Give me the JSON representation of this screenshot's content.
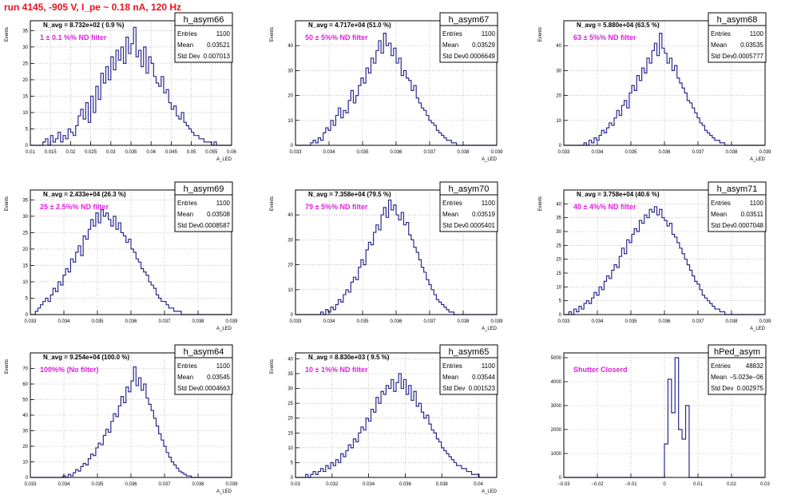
{
  "page": {
    "run_title": "run 4145,  -905 V, I_pe ~ 0.18 nA, 120 Hz"
  },
  "colors": {
    "histogram_line": "#2b2b8f",
    "title_red": "#e8141e",
    "annotation_magenta": "#e020e0",
    "grid": "#9a9a9a",
    "frame": "#000000"
  },
  "chart_data": [
    {
      "type": "histogram",
      "name": "h_asym66",
      "stats": {
        "Entries": "1100",
        "Mean": "0.03521",
        "Std Dev": "0.007013"
      },
      "navg": "N_avg = 8.732e+02 ( 0.9 %)",
      "note": "1 ± 0.1 %% ND filter",
      "ylabel": "Events",
      "xlabel": "A_LED",
      "xlim": [
        0.01,
        0.06
      ],
      "ylim": [
        0,
        38
      ],
      "xticks": [
        "0.01",
        "0.015",
        "0.02",
        "0.025",
        "0.03",
        "0.035",
        "0.04",
        "0.045",
        "0.05",
        "0.055",
        "0.06"
      ],
      "xtick_values": [
        0.01,
        0.015,
        0.02,
        0.025,
        0.03,
        0.035,
        0.04,
        0.045,
        0.05,
        0.055,
        0.06
      ],
      "yticks": [
        0,
        5,
        10,
        15,
        20,
        25,
        30,
        35
      ],
      "grid": true,
      "values": [
        0,
        0,
        0,
        0,
        0,
        1,
        2,
        0,
        3,
        1,
        2,
        4,
        1,
        3,
        2,
        5,
        4,
        3,
        6,
        9,
        11,
        8,
        13,
        7,
        15,
        10,
        18,
        14,
        22,
        19,
        24,
        20,
        27,
        23,
        29,
        26,
        30,
        25,
        33,
        28,
        31,
        36,
        27,
        29,
        24,
        30,
        22,
        27,
        25,
        21,
        19,
        18,
        21,
        16,
        17,
        13,
        11,
        12,
        9,
        8,
        10,
        7,
        6,
        5,
        4,
        3,
        3,
        2,
        2,
        1,
        1,
        1,
        0,
        1,
        0,
        0,
        0,
        0,
        0,
        0
      ]
    },
    {
      "type": "histogram",
      "name": "h_asym67",
      "stats": {
        "Entries": "1100",
        "Mean": "0.03529",
        "Std Dev": "0.0006649"
      },
      "navg": "N_avg = 4.717e+04 (51.0 %)",
      "note": "50 ± 5%% ND filter",
      "ylabel": "Events",
      "xlabel": "A_LED",
      "xlim": [
        0.033,
        0.039
      ],
      "ylim": [
        0,
        50
      ],
      "xticks": [
        "0.033",
        "0.034",
        "0.035",
        "0.036",
        "0.037",
        "0.038",
        "0.039"
      ],
      "xtick_values": [
        0.033,
        0.034,
        0.035,
        0.036,
        0.037,
        0.038,
        0.039
      ],
      "yticks": [
        0,
        10,
        20,
        30,
        40
      ],
      "grid": true,
      "values": [
        0,
        0,
        0,
        0,
        0,
        0,
        1,
        2,
        1,
        3,
        2,
        5,
        7,
        6,
        10,
        8,
        12,
        15,
        11,
        14,
        13,
        18,
        22,
        17,
        20,
        24,
        27,
        25,
        31,
        29,
        35,
        33,
        38,
        42,
        37,
        45,
        40,
        41,
        36,
        39,
        33,
        35,
        28,
        30,
        27,
        26,
        22,
        24,
        19,
        17,
        15,
        14,
        12,
        10,
        9,
        8,
        6,
        5,
        4,
        3,
        2,
        2,
        1,
        1,
        0,
        0,
        0,
        0,
        0,
        0,
        0,
        0,
        0,
        0,
        0,
        0,
        0,
        0,
        0,
        0
      ]
    },
    {
      "type": "histogram",
      "name": "h_asym68",
      "stats": {
        "Entries": "1100",
        "Mean": "0.03535",
        "Std Dev": "0.0005777"
      },
      "navg": "N_avg = 5.880e+04 (63.5 %)",
      "note": "63 ± 5%% ND filter",
      "ylabel": "Events",
      "xlabel": "A_LED",
      "xlim": [
        0.033,
        0.039
      ],
      "ylim": [
        0,
        50
      ],
      "xticks": [
        "0.033",
        "0.034",
        "0.035",
        "0.036",
        "0.037",
        "0.038",
        "0.039"
      ],
      "xtick_values": [
        0.033,
        0.034,
        0.035,
        0.036,
        0.037,
        0.038,
        0.039
      ],
      "yticks": [
        0,
        10,
        20,
        30,
        40
      ],
      "grid": true,
      "values": [
        0,
        0,
        0,
        0,
        0,
        0,
        0,
        0,
        1,
        0,
        2,
        1,
        3,
        2,
        4,
        6,
        5,
        7,
        9,
        8,
        11,
        14,
        12,
        16,
        18,
        15,
        21,
        24,
        22,
        28,
        26,
        31,
        29,
        35,
        33,
        38,
        41,
        36,
        45,
        39,
        37,
        33,
        35,
        30,
        32,
        27,
        25,
        23,
        21,
        18,
        17,
        15,
        13,
        11,
        9,
        8,
        6,
        5,
        4,
        3,
        2,
        2,
        1,
        1,
        0,
        0,
        0,
        0,
        0,
        0,
        0,
        0,
        0,
        0,
        0,
        0,
        0,
        0,
        0,
        0
      ]
    },
    {
      "type": "histogram",
      "name": "h_asym69",
      "stats": {
        "Entries": "1100",
        "Mean": "0.03508",
        "Std Dev": "0.0008587"
      },
      "navg": "N_avg = 2.433e+04 (26.3 %)",
      "note": "25 ± 2.5%% ND filter",
      "ylabel": "Events",
      "xlabel": "A_LED",
      "xlim": [
        0.033,
        0.039
      ],
      "ylim": [
        0,
        38
      ],
      "xticks": [
        "0.033",
        "0.034",
        "0.035",
        "0.036",
        "0.037",
        "0.038",
        "0.039"
      ],
      "xtick_values": [
        0.033,
        0.034,
        0.035,
        0.036,
        0.037,
        0.038,
        0.039
      ],
      "yticks": [
        0,
        5,
        10,
        15,
        20,
        25,
        30,
        35
      ],
      "grid": true,
      "values": [
        0,
        0,
        1,
        2,
        3,
        4,
        5,
        4,
        6,
        8,
        7,
        10,
        9,
        12,
        14,
        13,
        17,
        16,
        19,
        21,
        18,
        24,
        23,
        26,
        29,
        27,
        31,
        28,
        32,
        30,
        31,
        29,
        27,
        30,
        26,
        28,
        25,
        24,
        22,
        23,
        20,
        19,
        17,
        16,
        14,
        13,
        12,
        10,
        9,
        8,
        6,
        5,
        4,
        4,
        3,
        2,
        2,
        1,
        1,
        1,
        0,
        0,
        0,
        0,
        0,
        0,
        0,
        0,
        0,
        0,
        0,
        0,
        0,
        0,
        0,
        0,
        0,
        0,
        0,
        0
      ]
    },
    {
      "type": "histogram",
      "name": "h_asym70",
      "stats": {
        "Entries": "1100",
        "Mean": "0.03519",
        "Std Dev": "0.0005401"
      },
      "navg": "N_avg = 7.358e+04 (79.5 %)",
      "note": "79 ± 5%% ND filter",
      "ylabel": "Events",
      "xlabel": "A_LED",
      "xlim": [
        0.033,
        0.039
      ],
      "ylim": [
        0,
        50
      ],
      "xticks": [
        "0.033",
        "0.034",
        "0.035",
        "0.036",
        "0.037",
        "0.038",
        "0.039"
      ],
      "xtick_values": [
        0.033,
        0.034,
        0.035,
        0.036,
        0.037,
        0.038,
        0.039
      ],
      "yticks": [
        0,
        10,
        20,
        30,
        40
      ],
      "grid": true,
      "values": [
        0,
        0,
        0,
        0,
        0,
        0,
        0,
        0,
        0,
        0,
        1,
        0,
        2,
        1,
        3,
        2,
        4,
        6,
        5,
        8,
        10,
        9,
        13,
        15,
        14,
        19,
        22,
        20,
        26,
        29,
        28,
        33,
        36,
        34,
        40,
        43,
        39,
        46,
        42,
        44,
        40,
        38,
        41,
        36,
        37,
        32,
        30,
        27,
        25,
        22,
        19,
        17,
        14,
        12,
        10,
        8,
        6,
        5,
        4,
        3,
        2,
        1,
        1,
        0,
        0,
        0,
        0,
        0,
        0,
        0,
        0,
        0,
        0,
        0,
        0,
        0,
        0,
        0,
        0,
        0
      ]
    },
    {
      "type": "histogram",
      "name": "h_asym71",
      "stats": {
        "Entries": "1100",
        "Mean": "0.03511",
        "Std Dev": "0.0007048"
      },
      "navg": "N_avg = 3.758e+04 (40.6 %)",
      "note": "40 ± 4%% ND filter",
      "ylabel": "Events",
      "xlabel": "A_LED",
      "xlim": [
        0.033,
        0.039
      ],
      "ylim": [
        0,
        45
      ],
      "xticks": [
        "0.033",
        "0.034",
        "0.035",
        "0.036",
        "0.037",
        "0.038",
        "0.039"
      ],
      "xtick_values": [
        0.033,
        0.034,
        0.035,
        0.036,
        0.037,
        0.038,
        0.039
      ],
      "yticks": [
        0,
        5,
        10,
        15,
        20,
        25,
        30,
        35,
        40
      ],
      "grid": true,
      "values": [
        0,
        0,
        1,
        0,
        2,
        1,
        3,
        2,
        4,
        5,
        4,
        6,
        8,
        7,
        10,
        9,
        12,
        14,
        13,
        16,
        18,
        17,
        21,
        24,
        22,
        27,
        26,
        29,
        31,
        30,
        34,
        33,
        36,
        35,
        38,
        37,
        39,
        36,
        38,
        35,
        34,
        32,
        33,
        29,
        28,
        26,
        24,
        22,
        20,
        18,
        16,
        14,
        12,
        11,
        9,
        7,
        6,
        5,
        4,
        3,
        2,
        2,
        1,
        1,
        0,
        0,
        0,
        0,
        0,
        0,
        0,
        0,
        0,
        0,
        0,
        0,
        0,
        0,
        0,
        0
      ]
    },
    {
      "type": "histogram",
      "name": "h_asym64",
      "stats": {
        "Entries": "1100",
        "Mean": "0.03545",
        "Std Dev": "0.0004663"
      },
      "navg": "N_avg = 9.254e+04 (100.0 %)",
      "note": "100%% (No filter)",
      "ylabel": "Events",
      "xlabel": "A_LED",
      "xlim": [
        0.033,
        0.039
      ],
      "ylim": [
        0,
        80
      ],
      "xticks": [
        "0.033",
        "0.034",
        "0.035",
        "0.036",
        "0.037",
        "0.038",
        "0.039"
      ],
      "xtick_values": [
        0.033,
        0.034,
        0.035,
        0.036,
        0.037,
        0.038,
        0.039
      ],
      "yticks": [
        0,
        10,
        20,
        30,
        40,
        50,
        60,
        70
      ],
      "grid": true,
      "values": [
        0,
        0,
        0,
        0,
        0,
        0,
        0,
        0,
        0,
        0,
        0,
        0,
        0,
        1,
        0,
        2,
        1,
        3,
        5,
        4,
        7,
        9,
        8,
        12,
        15,
        14,
        19,
        22,
        21,
        27,
        31,
        29,
        36,
        41,
        39,
        46,
        52,
        48,
        58,
        55,
        62,
        71,
        59,
        64,
        56,
        60,
        51,
        47,
        43,
        38,
        33,
        28,
        24,
        20,
        16,
        13,
        10,
        8,
        6,
        4,
        3,
        2,
        1,
        1,
        0,
        0,
        0,
        0,
        0,
        0,
        0,
        0,
        0,
        0,
        0,
        0,
        0,
        0,
        0,
        0
      ]
    },
    {
      "type": "histogram",
      "name": "h_asym65",
      "stats": {
        "Entries": "1100",
        "Mean": "0.03544",
        "Std Dev": "0.001523"
      },
      "navg": "N_avg = 8.830e+03 ( 9.5 %)",
      "note": "10 ± 1%% ND filter",
      "ylabel": "Events",
      "xlabel": "A_LED",
      "xlim": [
        0.03,
        0.041
      ],
      "ylim": [
        0,
        42
      ],
      "xticks": [
        "0.03",
        "0.032",
        "0.034",
        "0.036",
        "0.038",
        "0.04"
      ],
      "xtick_values": [
        0.03,
        0.032,
        0.034,
        0.036,
        0.038,
        0.04
      ],
      "yticks": [
        0,
        5,
        10,
        15,
        20,
        25,
        30,
        35,
        40
      ],
      "grid": true,
      "values": [
        0,
        0,
        0,
        0,
        1,
        0,
        1,
        2,
        1,
        2,
        3,
        2,
        4,
        3,
        5,
        4,
        6,
        5,
        8,
        7,
        9,
        11,
        10,
        13,
        12,
        15,
        17,
        16,
        20,
        19,
        23,
        22,
        27,
        25,
        29,
        28,
        31,
        30,
        33,
        29,
        32,
        35,
        30,
        33,
        28,
        31,
        26,
        29,
        24,
        25,
        22,
        20,
        21,
        18,
        16,
        15,
        13,
        12,
        10,
        9,
        8,
        7,
        6,
        5,
        4,
        4,
        3,
        3,
        2,
        2,
        1,
        1,
        1,
        0,
        0,
        0,
        0,
        0,
        0,
        0
      ]
    },
    {
      "type": "histogram",
      "name": "hPed_asym",
      "stats": {
        "Entries": "48832",
        "Mean": "−5.023e−06",
        "Std Dev": "0.002975"
      },
      "navg": "",
      "note": "Shutter Closerd",
      "ylabel": "",
      "xlabel": "",
      "xlim": [
        -0.03,
        0.03
      ],
      "ylim": [
        0,
        5200
      ],
      "xticks": [
        "−0.03",
        "−0.02",
        "−0.01",
        "0",
        "0.01",
        "0.02",
        "0.03"
      ],
      "xtick_values": [
        -0.03,
        -0.02,
        -0.01,
        0,
        0.01,
        0.02,
        0.03
      ],
      "yticks": [
        0,
        1000,
        2000,
        3000,
        4000,
        5000
      ],
      "grid": true,
      "values": [
        0,
        0,
        0,
        0,
        0,
        0,
        0,
        0,
        0,
        0,
        0,
        0,
        0,
        0,
        0,
        0,
        0,
        0,
        0,
        0,
        0,
        0,
        0,
        0,
        0,
        0,
        0,
        0,
        0,
        0,
        0,
        0,
        0,
        0,
        0,
        0,
        0,
        0,
        0,
        0,
        0,
        0,
        0,
        0,
        0,
        0,
        0,
        0,
        0,
        0,
        0,
        0,
        0,
        0,
        0,
        0,
        0,
        1400,
        1400,
        4100,
        4100,
        2700,
        2700,
        5000,
        5000,
        2000,
        2000,
        1600,
        1600,
        3000,
        3000,
        0,
        0,
        0,
        0,
        0,
        0,
        0,
        0,
        0,
        0,
        0,
        0,
        0,
        0,
        0,
        0,
        0,
        0,
        0,
        0,
        0,
        0,
        0,
        0,
        0,
        0,
        0,
        0,
        0,
        0,
        0,
        0,
        0,
        0,
        0,
        0,
        0,
        0,
        0,
        0,
        0,
        0,
        0
      ]
    }
  ]
}
